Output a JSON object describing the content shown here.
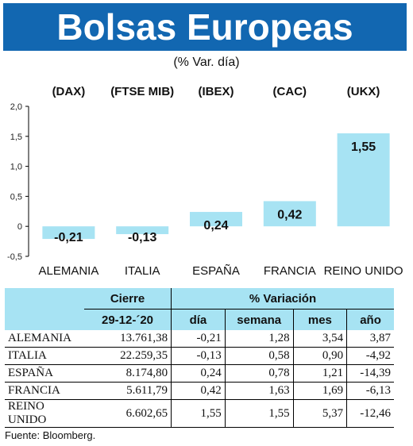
{
  "header": {
    "title": "Bolsas Europeas",
    "subtitle": "(% Var. día)"
  },
  "chart_data": {
    "type": "bar",
    "categories": [
      "ALEMANIA",
      "ITALIA",
      "ESPAÑA",
      "FRANCIA",
      "REINO UNIDO"
    ],
    "index_labels": [
      "(DAX)",
      "(FTSE MIB)",
      "(IBEX)",
      "(CAC)",
      "(UKX)"
    ],
    "values": [
      -0.21,
      -0.13,
      0.24,
      0.42,
      1.55
    ],
    "value_labels": [
      "-0,21",
      "-0,13",
      "0,24",
      "0,42",
      "1,55"
    ],
    "yticks": [
      2.0,
      1.5,
      1.0,
      0.5,
      0,
      -0.5
    ],
    "ytick_labels": [
      "2,0",
      "1,5",
      "1,0",
      "0,5",
      "0",
      "-0,5"
    ],
    "ylim": [
      -0.5,
      2.0
    ],
    "bar_color": "#a7e3f3",
    "grid": false
  },
  "table": {
    "header_cierre": "Cierre",
    "header_variacion": "% Variación",
    "header_date": "29-12-´20",
    "columns": [
      "día",
      "semana",
      "mes",
      "año"
    ],
    "rows": [
      {
        "name": "ALEMANIA",
        "cierre": "13.761,38",
        "dia": "-0,21",
        "semana": "1,28",
        "mes": "3,54",
        "ano": "3,87"
      },
      {
        "name": "ITALIA",
        "cierre": "22.259,35",
        "dia": "-0,13",
        "semana": "0,58",
        "mes": "0,90",
        "ano": "-4,92"
      },
      {
        "name": "ESPAÑA",
        "cierre": "8.174,80",
        "dia": "0,24",
        "semana": "0,78",
        "mes": "1,21",
        "ano": "-14,39"
      },
      {
        "name": "FRANCIA",
        "cierre": "5.611,79",
        "dia": "0,42",
        "semana": "1,63",
        "mes": "1,69",
        "ano": "-6,13"
      },
      {
        "name": "REINO UNIDO",
        "cierre": "6.602,65",
        "dia": "1,55",
        "semana": "1,55",
        "mes": "5,37",
        "ano": "-12,46"
      }
    ]
  },
  "source": "Fuente: Bloomberg."
}
